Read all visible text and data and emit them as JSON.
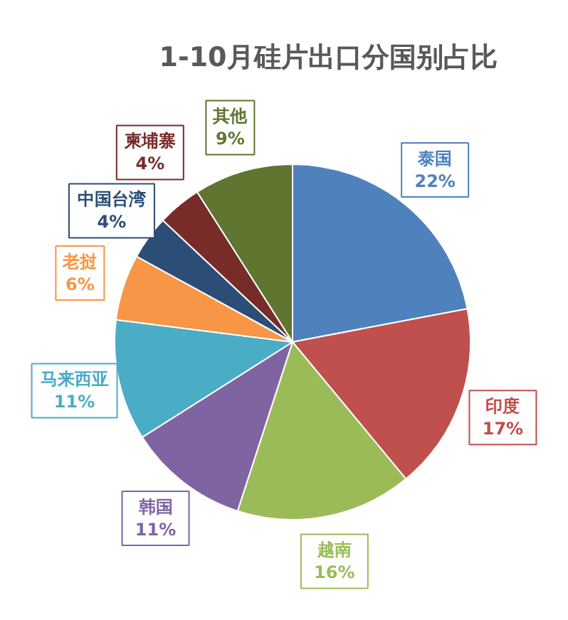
{
  "chart_data": {
    "type": "pie",
    "title": "1-10月硅片出口分国别占比",
    "categories": [
      "泰国",
      "印度",
      "越南",
      "韩国",
      "马来西亚",
      "老挝",
      "中国台湾",
      "柬埔寨",
      "其他"
    ],
    "values": [
      22,
      17,
      16,
      11,
      11,
      6,
      4,
      4,
      9
    ],
    "value_labels": [
      "22%",
      "17%",
      "16%",
      "11%",
      "11%",
      "6%",
      "4%",
      "4%",
      "9%"
    ],
    "colors": [
      "#4f81bd",
      "#c0504d",
      "#9bbb59",
      "#8064a2",
      "#4bacc6",
      "#f79646",
      "#2c4d75",
      "#772c2a",
      "#5f7530"
    ]
  }
}
